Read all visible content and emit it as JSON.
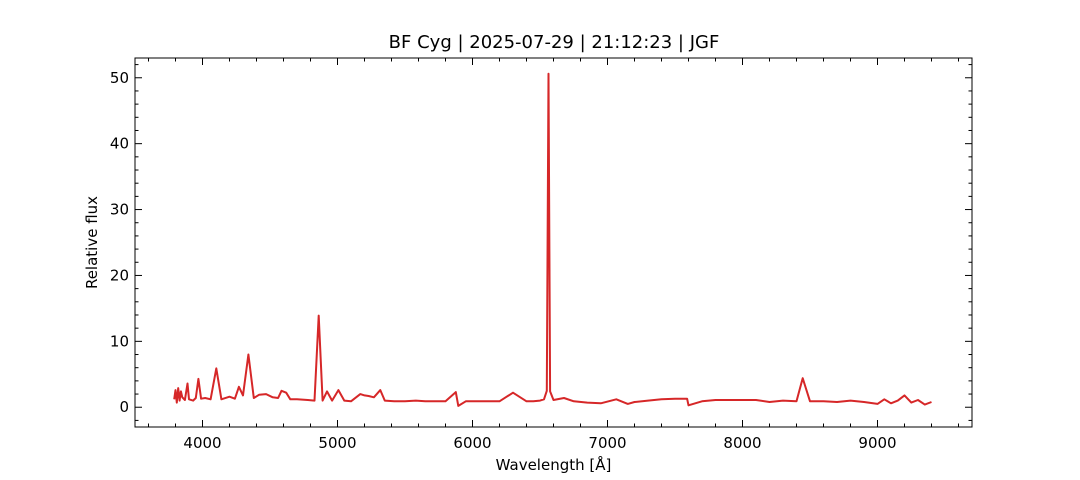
{
  "chart_data": {
    "type": "line",
    "title": "BF Cyg | 2025-07-29 | 21:12:23 | JGF",
    "xlabel": "Wavelength [Å]",
    "ylabel": "Relative flux",
    "xlim": [
      3500,
      9700
    ],
    "ylim": [
      -3,
      53
    ],
    "xticks": [
      4000,
      5000,
      6000,
      7000,
      8000,
      9000
    ],
    "yticks": [
      0,
      10,
      20,
      30,
      40,
      50
    ],
    "grid": false,
    "line_color": "#d62728",
    "series": [
      {
        "x": [
          3790,
          3800,
          3810,
          3820,
          3830,
          3840,
          3850,
          3870,
          3889,
          3900,
          3930,
          3950,
          3970,
          3990,
          4020,
          4060,
          4102,
          4140,
          4200,
          4240,
          4270,
          4300,
          4340,
          4380,
          4420,
          4471,
          4520,
          4560,
          4585,
          4620,
          4650,
          4700,
          4780,
          4830,
          4861,
          4890,
          4922,
          4960,
          5007,
          5050,
          5100,
          5169,
          5200,
          5230,
          5270,
          5317,
          5350,
          5420,
          5500,
          5580,
          5650,
          5700,
          5800,
          5876,
          5895,
          5950,
          6000,
          6100,
          6200,
          6300,
          6400,
          6450,
          6500,
          6530,
          6550,
          6563,
          6575,
          6600,
          6678,
          6750,
          6850,
          6950,
          7065,
          7150,
          7200,
          7300,
          7400,
          7500,
          7590,
          7600,
          7700,
          7800,
          7900,
          8000,
          8100,
          8200,
          8300,
          8400,
          8446,
          8500,
          8600,
          8700,
          8800,
          8900,
          9000,
          9050,
          9100,
          9150,
          9200,
          9250,
          9300,
          9350,
          9400
        ],
        "y": [
          1.2,
          2.6,
          0.7,
          2.9,
          1.0,
          2.4,
          1.5,
          1.1,
          3.6,
          1.2,
          1.0,
          1.4,
          4.3,
          1.3,
          1.4,
          1.2,
          5.9,
          1.2,
          1.6,
          1.3,
          3.1,
          1.8,
          8.0,
          1.4,
          1.9,
          2.0,
          1.5,
          1.4,
          2.5,
          2.2,
          1.2,
          1.2,
          1.1,
          1.0,
          13.9,
          1.0,
          2.4,
          1.0,
          2.6,
          1.0,
          0.9,
          2.0,
          1.8,
          1.7,
          1.5,
          2.6,
          1.0,
          0.9,
          0.9,
          1.0,
          0.9,
          0.9,
          0.9,
          2.3,
          0.2,
          0.9,
          0.9,
          0.9,
          0.9,
          2.2,
          0.9,
          0.9,
          1.0,
          1.2,
          2.5,
          50.6,
          2.4,
          1.1,
          1.4,
          0.9,
          0.7,
          0.6,
          1.2,
          0.5,
          0.8,
          1.0,
          1.2,
          1.3,
          1.3,
          0.3,
          0.9,
          1.1,
          1.1,
          1.1,
          1.1,
          0.8,
          1.0,
          0.9,
          4.4,
          0.9,
          0.9,
          0.8,
          1.0,
          0.8,
          0.5,
          1.2,
          0.6,
          1.0,
          1.8,
          0.7,
          1.1,
          0.4,
          0.8
        ]
      }
    ]
  }
}
